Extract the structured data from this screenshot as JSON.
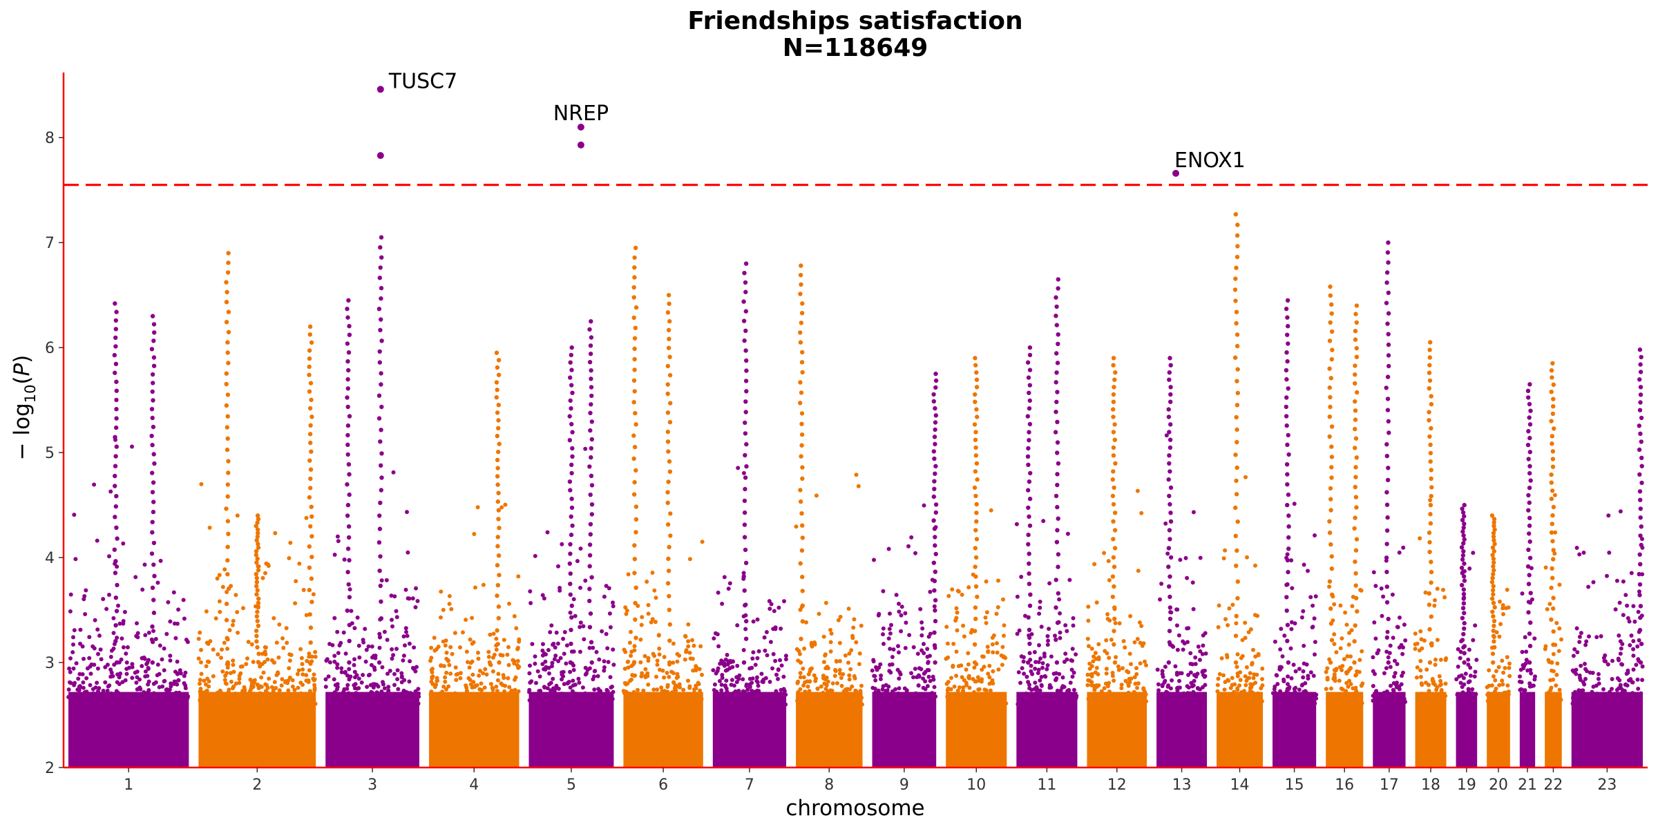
{
  "chart_data": {
    "type": "scatter",
    "subtype": "manhattan",
    "title": "Friendships satisfaction",
    "subtitle": "N=118649",
    "xlabel": "chromosome",
    "ylabel": "− log10(P)",
    "ylabel_parts": {
      "prefix": "− log",
      "sub": "10",
      "suffix": "(",
      "var": "P",
      "close": ")"
    },
    "ylim": [
      2,
      8.62
    ],
    "yticks": [
      2,
      3,
      4,
      5,
      6,
      7,
      8
    ],
    "grid": false,
    "legend": "none",
    "significance_threshold": 7.55,
    "colors": {
      "odd": "#8b008b",
      "even": "#ee7600",
      "axis": "#ff0000",
      "threshold": "#ff0000"
    },
    "chromosomes": [
      {
        "label": "1",
        "length": 249
      },
      {
        "label": "2",
        "length": 243
      },
      {
        "label": "3",
        "length": 198
      },
      {
        "label": "4",
        "length": 191
      },
      {
        "label": "5",
        "length": 181
      },
      {
        "label": "6",
        "length": 171
      },
      {
        "label": "7",
        "length": 159
      },
      {
        "label": "8",
        "length": 146
      },
      {
        "label": "9",
        "length": 141
      },
      {
        "label": "10",
        "length": 135
      },
      {
        "label": "11",
        "length": 135
      },
      {
        "label": "12",
        "length": 133
      },
      {
        "label": "13",
        "length": 115
      },
      {
        "label": "14",
        "length": 107
      },
      {
        "label": "15",
        "length": 102
      },
      {
        "label": "16",
        "length": 90
      },
      {
        "label": "17",
        "length": 81
      },
      {
        "label": "18",
        "length": 78
      },
      {
        "label": "19",
        "length": 59
      },
      {
        "label": "20",
        "length": 63
      },
      {
        "label": "21",
        "length": 48
      },
      {
        "label": "22",
        "length": 51
      },
      {
        "label": "23",
        "length": 155
      }
    ],
    "top_hits": [
      {
        "chr": "3",
        "pos": 116,
        "p": 8.46,
        "label": "TUSC7"
      },
      {
        "chr": "3",
        "pos": 116,
        "p": 7.83,
        "label": ""
      },
      {
        "chr": "5",
        "pos": 111,
        "p": 8.1,
        "label": "NREP"
      },
      {
        "chr": "5",
        "pos": 111,
        "p": 7.93,
        "label": ""
      },
      {
        "chr": "13",
        "pos": 44,
        "p": 7.66,
        "label": "ENOX1"
      }
    ],
    "peaks": [
      {
        "chr": "1",
        "pos": 98,
        "p": 6.42
      },
      {
        "chr": "1",
        "pos": 175,
        "p": 6.3
      },
      {
        "chr": "2",
        "pos": 60,
        "p": 6.9
      },
      {
        "chr": "2",
        "pos": 122,
        "p": 4.4
      },
      {
        "chr": "2",
        "pos": 232,
        "p": 6.2
      },
      {
        "chr": "3",
        "pos": 116,
        "p": 7.05
      },
      {
        "chr": "3",
        "pos": 48,
        "p": 6.45
      },
      {
        "chr": "4",
        "pos": 146,
        "p": 5.95
      },
      {
        "chr": "5",
        "pos": 132,
        "p": 6.25
      },
      {
        "chr": "5",
        "pos": 90,
        "p": 6.0
      },
      {
        "chr": "6",
        "pos": 25,
        "p": 6.95
      },
      {
        "chr": "6",
        "pos": 98,
        "p": 6.5
      },
      {
        "chr": "7",
        "pos": 70,
        "p": 6.8
      },
      {
        "chr": "8",
        "pos": 12,
        "p": 6.78
      },
      {
        "chr": "9",
        "pos": 138,
        "p": 5.75
      },
      {
        "chr": "10",
        "pos": 67,
        "p": 5.9
      },
      {
        "chr": "11",
        "pos": 28,
        "p": 6.0
      },
      {
        "chr": "11",
        "pos": 90,
        "p": 6.65
      },
      {
        "chr": "12",
        "pos": 60,
        "p": 5.9
      },
      {
        "chr": "13",
        "pos": 30,
        "p": 5.9
      },
      {
        "chr": "14",
        "pos": 46,
        "p": 7.27
      },
      {
        "chr": "15",
        "pos": 35,
        "p": 6.45
      },
      {
        "chr": "16",
        "pos": 12,
        "p": 6.58
      },
      {
        "chr": "16",
        "pos": 72,
        "p": 6.4
      },
      {
        "chr": "17",
        "pos": 36,
        "p": 7.0
      },
      {
        "chr": "18",
        "pos": 38,
        "p": 6.05
      },
      {
        "chr": "19",
        "pos": 20,
        "p": 4.5
      },
      {
        "chr": "20",
        "pos": 18,
        "p": 4.4
      },
      {
        "chr": "21",
        "pos": 30,
        "p": 5.65
      },
      {
        "chr": "22",
        "pos": 23,
        "p": 5.85
      },
      {
        "chr": "23",
        "pos": 150,
        "p": 5.98
      }
    ]
  }
}
